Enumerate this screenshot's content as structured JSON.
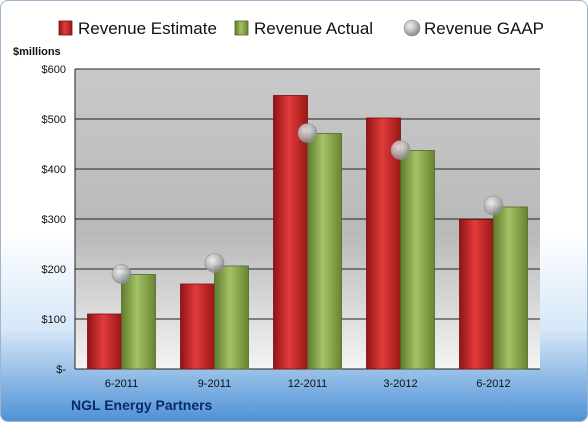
{
  "chart_data": {
    "type": "bar",
    "categories": [
      "6-2011",
      "9-2011",
      "12-2011",
      "3-2012",
      "6-2012"
    ],
    "series": [
      {
        "name": "Revenue Estimate",
        "values": [
          110,
          170,
          547,
          502,
          299
        ],
        "color": "#cc2a2a"
      },
      {
        "name": "Revenue Actual",
        "values": [
          189,
          206,
          471,
          437,
          324
        ],
        "color": "#86a84a"
      },
      {
        "name": "Revenue GAAP",
        "values": [
          190,
          212,
          472,
          438,
          327
        ],
        "color": "#b0b0b0",
        "marker": "circle"
      }
    ],
    "ylabel": "$millions",
    "ylim": [
      0,
      600
    ],
    "yticks": [
      0,
      100,
      200,
      300,
      400,
      500,
      600
    ],
    "ytick_labels": [
      "$-",
      "$100",
      "$200",
      "$300",
      "$400",
      "$500",
      "$600"
    ],
    "grid": true,
    "legend": "top"
  },
  "footer": {
    "company": "NGL Energy Partners"
  }
}
